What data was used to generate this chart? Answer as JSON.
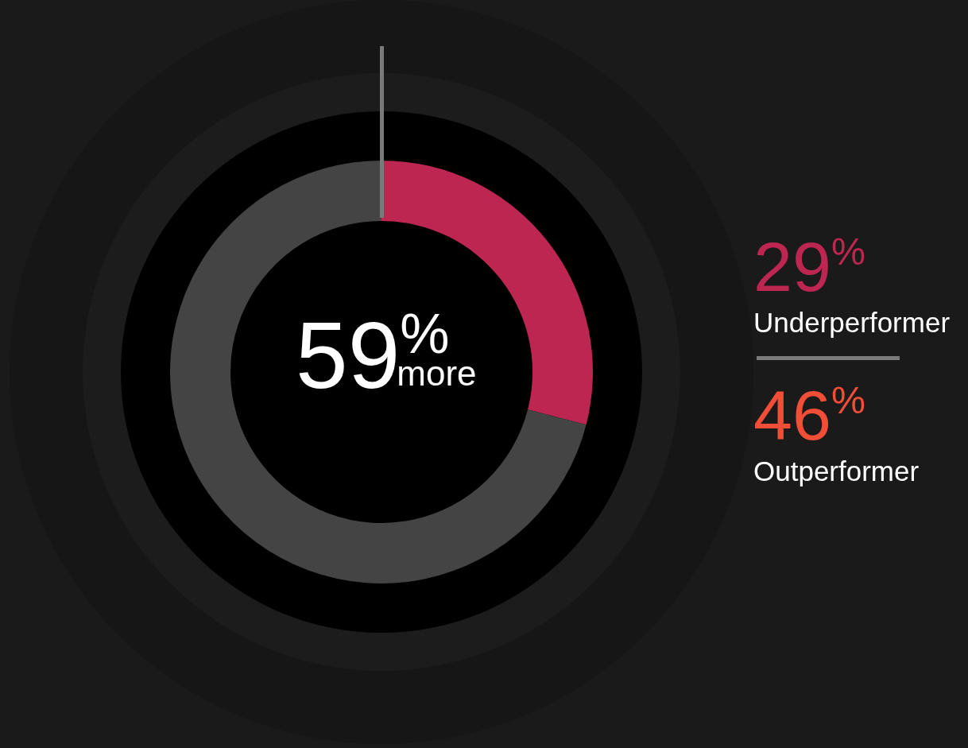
{
  "chart_data": {
    "type": "donut",
    "categories": [
      "Underperformer",
      null
    ],
    "values": [
      29,
      71
    ],
    "colors": [
      "#bc2651",
      "#444444"
    ],
    "value_labels": [
      "29%",
      null
    ],
    "annotations": [
      "59% more",
      "46%",
      "Outperformer"
    ]
  }
}
